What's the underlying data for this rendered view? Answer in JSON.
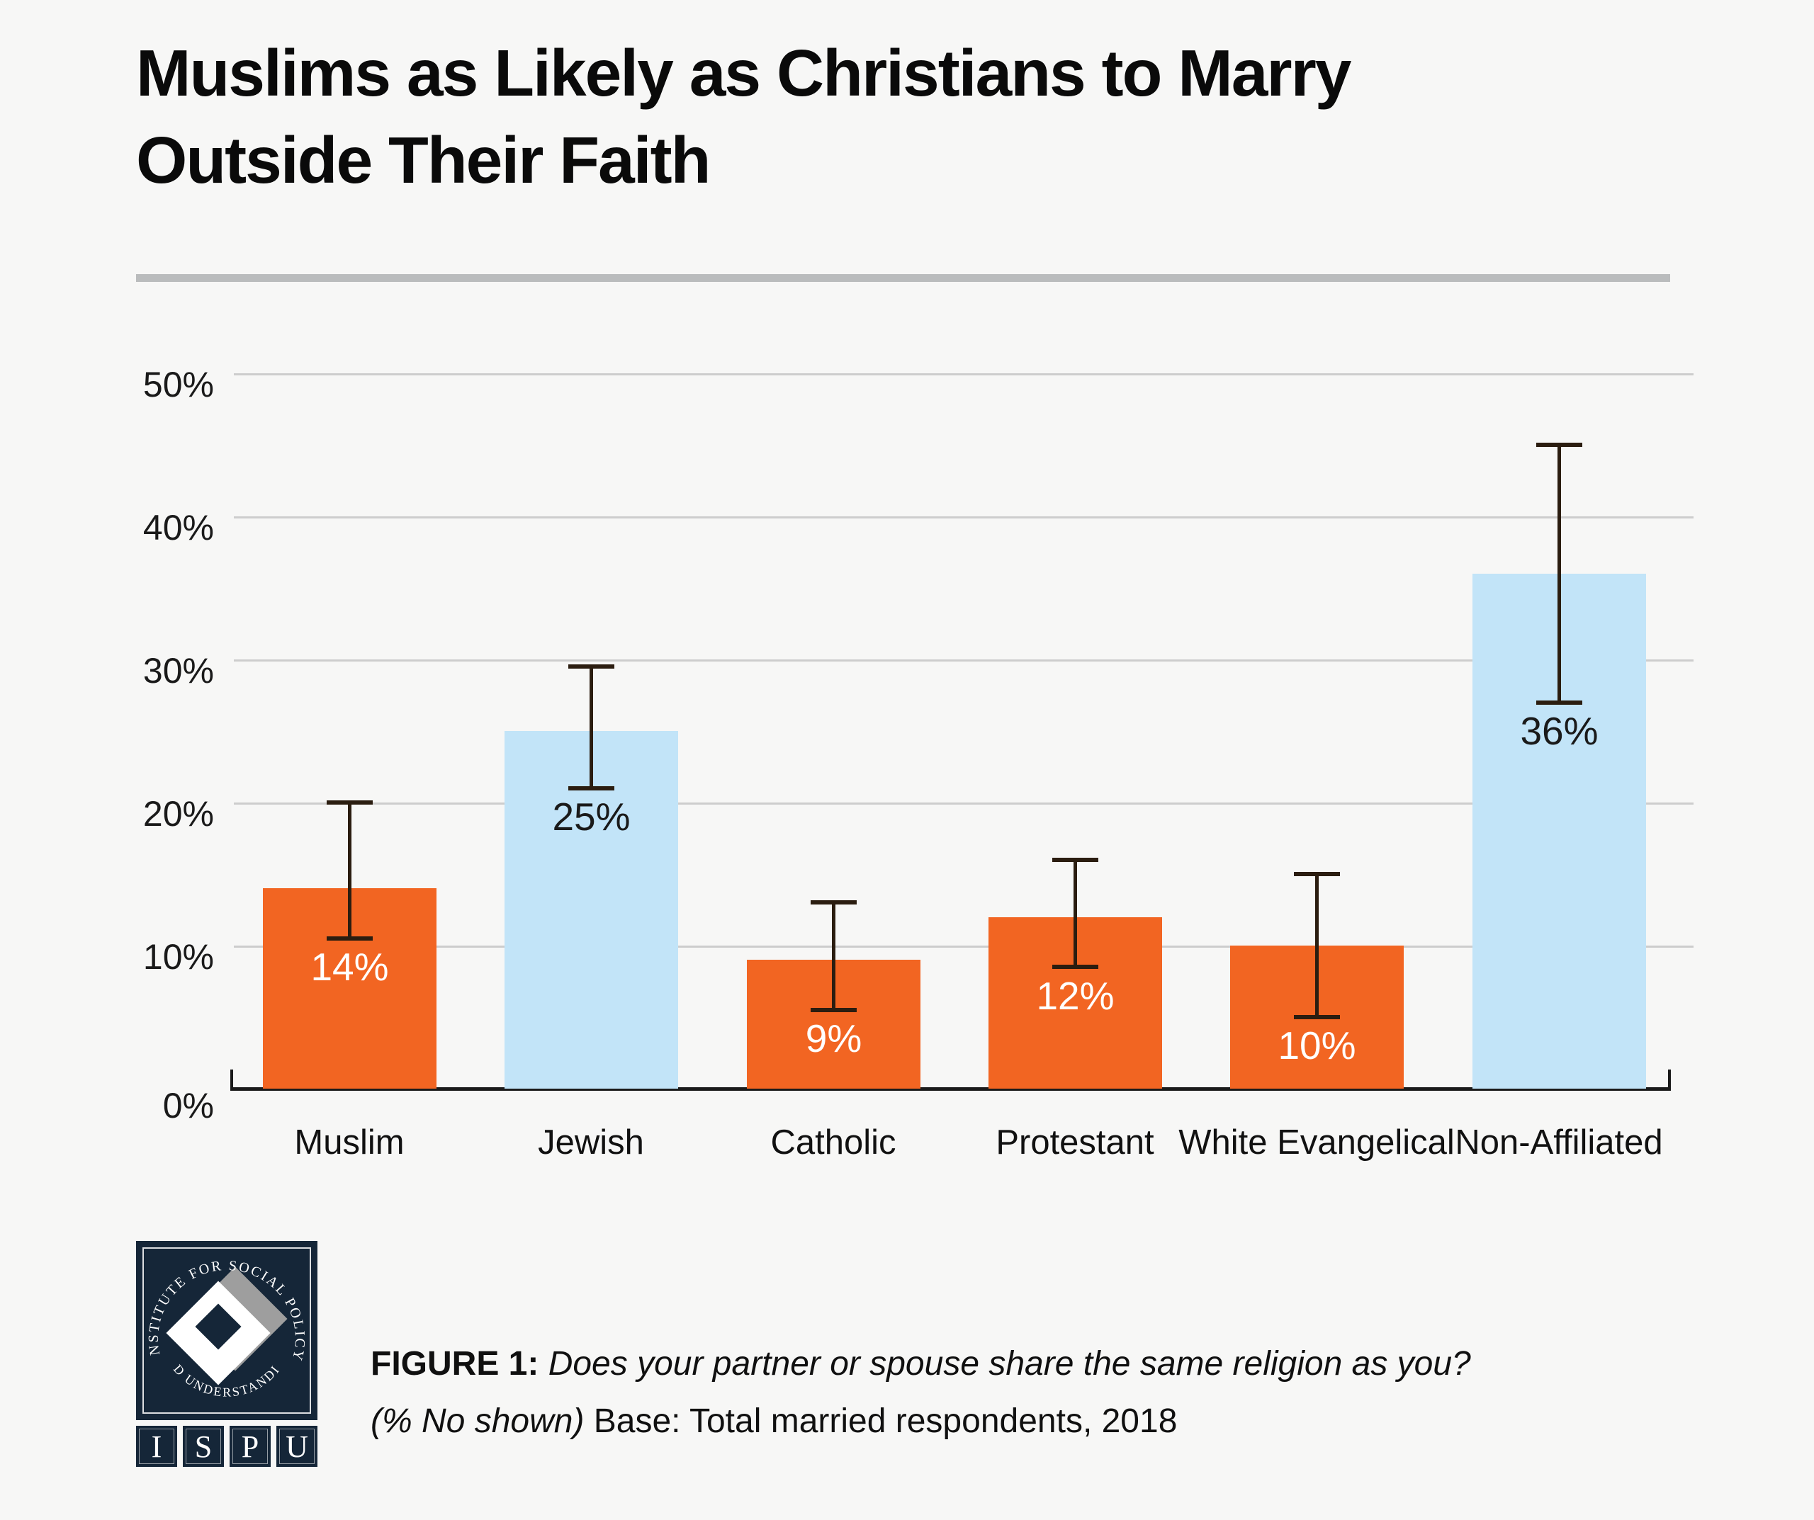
{
  "page": {
    "background": "#F7F7F6"
  },
  "title": {
    "text": "Muslims as Likely as Christians to Marry Outside Their Faith",
    "line1": "Muslims as Likely as Christians to Marry",
    "line2": "Outside Their Faith"
  },
  "chart_data": {
    "type": "bar",
    "title": "Muslims as Likely as Christians to Marry Outside Their Faith",
    "categories": [
      "Muslim",
      "Jewish",
      "Catholic",
      "Protestant",
      "White Evangelical",
      "Non-Affiliated"
    ],
    "values": [
      14,
      25,
      9,
      12,
      10,
      36
    ],
    "value_labels": [
      "14%",
      "25%",
      "9%",
      "12%",
      "10%",
      "36%"
    ],
    "error_bars": {
      "low": [
        10.5,
        21,
        5.5,
        8.5,
        5,
        27
      ],
      "high": [
        20,
        29.5,
        13,
        16,
        15,
        45
      ]
    },
    "bar_colors": [
      "#F26522",
      "#C2E4F8",
      "#F26522",
      "#F26522",
      "#F26522",
      "#C2E4F8"
    ],
    "value_label_colors": [
      "#FFFFFF",
      "#1A1A1A",
      "#FFFFFF",
      "#FFFFFF",
      "#FFFFFF",
      "#1A1A1A"
    ],
    "yticks": [
      "0%",
      "10%",
      "20%",
      "30%",
      "40%",
      "50%"
    ],
    "ylim": [
      0,
      50
    ],
    "xlabel": "",
    "ylabel": "",
    "grid": "horizontal gridlines every 10%",
    "legend": "none"
  },
  "caption": {
    "figure_label": "FIGURE 1:",
    "question": " Does your partner or spouse share the same religion as you?",
    "subtext_italic": "(% No shown)",
    "subtext_regular": " Base: Total married respondents, 2018"
  },
  "logo": {
    "arc_top": "INSTITUTE FOR SOCIAL POLICY",
    "arc_bottom": "AND UNDERSTANDING",
    "letters": [
      "I",
      "S",
      "P",
      "U"
    ]
  },
  "colors": {
    "orange": "#F26522",
    "light_blue": "#C2E4F8",
    "navy": "#152638",
    "gridline": "#CDCDCD",
    "axis": "#1A1A1A",
    "error_bar": "#2B1D10",
    "divider": "#BABCBD"
  }
}
